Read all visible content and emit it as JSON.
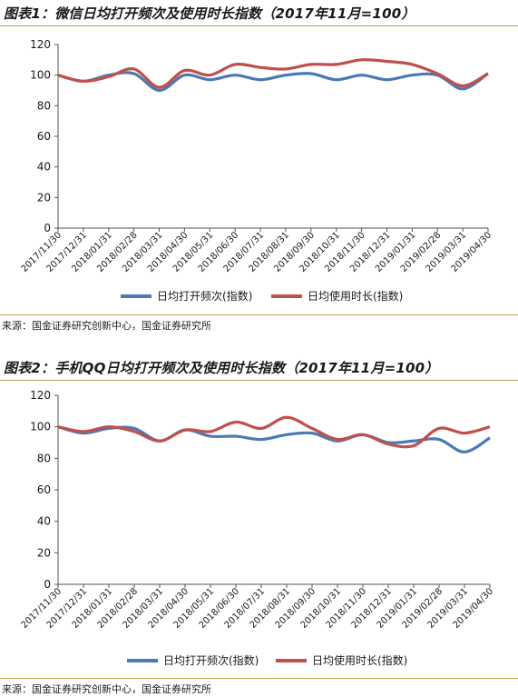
{
  "chart_data": [
    {
      "type": "line",
      "title": "图表1：微信日均打开频次及使用时长指数（2017年11月=100）",
      "x": [
        "2017/11/30",
        "2017/12/31",
        "2018/01/31",
        "2018/02/28",
        "2018/03/31",
        "2018/04/30",
        "2018/05/31",
        "2018/06/30",
        "2018/07/31",
        "2018/08/31",
        "2018/09/30",
        "2018/10/31",
        "2018/11/30",
        "2018/12/31",
        "2019/01/31",
        "2019/02/28",
        "2019/03/31",
        "2019/04/30"
      ],
      "series": [
        {
          "name": "日均打开频次(指数)",
          "color": "#4a7ab5",
          "values": [
            100,
            96,
            100,
            101,
            90,
            100,
            97,
            100,
            97,
            100,
            101,
            97,
            100,
            97,
            100,
            100,
            91,
            101
          ]
        },
        {
          "name": "日均使用时长(指数)",
          "color": "#c0504d",
          "values": [
            100,
            96,
            99,
            104,
            92,
            103,
            100,
            107,
            105,
            104,
            107,
            107,
            110,
            109,
            107,
            101,
            93,
            101
          ]
        }
      ],
      "ylim": [
        0,
        120
      ],
      "yticks": [
        0,
        20,
        40,
        60,
        80,
        100,
        120
      ],
      "legend": "bottom",
      "source": "来源：国金证券研究创新中心，国金证券研究所"
    },
    {
      "type": "line",
      "title": "图表2：手机QQ日均打开频次及使用时长指数（2017年11月=100）",
      "x": [
        "2017/11/30",
        "2017/12/31",
        "2018/01/31",
        "2018/02/28",
        "2018/03/31",
        "2018/04/30",
        "2018/05/31",
        "2018/06/30",
        "2018/07/31",
        "2018/08/31",
        "2018/09/30",
        "2018/10/31",
        "2018/11/30",
        "2018/12/31",
        "2019/01/31",
        "2019/02/28",
        "2019/03/31",
        "2019/04/30"
      ],
      "series": [
        {
          "name": "日均打开频次(指数)",
          "color": "#4a7ab5",
          "values": [
            100,
            96,
            99,
            99,
            91,
            98,
            94,
            94,
            92,
            95,
            96,
            91,
            95,
            90,
            91,
            92,
            84,
            93
          ]
        },
        {
          "name": "日均使用时长(指数)",
          "color": "#c0504d",
          "values": [
            100,
            97,
            100,
            97,
            91,
            98,
            97,
            103,
            99,
            106,
            99,
            92,
            95,
            89,
            88,
            99,
            96,
            100
          ]
        }
      ],
      "ylim": [
        0,
        120
      ],
      "yticks": [
        0,
        20,
        40,
        60,
        80,
        100,
        120
      ],
      "legend": "bottom",
      "source": "来源：国金证券研究创新中心，国金证券研究所"
    }
  ]
}
